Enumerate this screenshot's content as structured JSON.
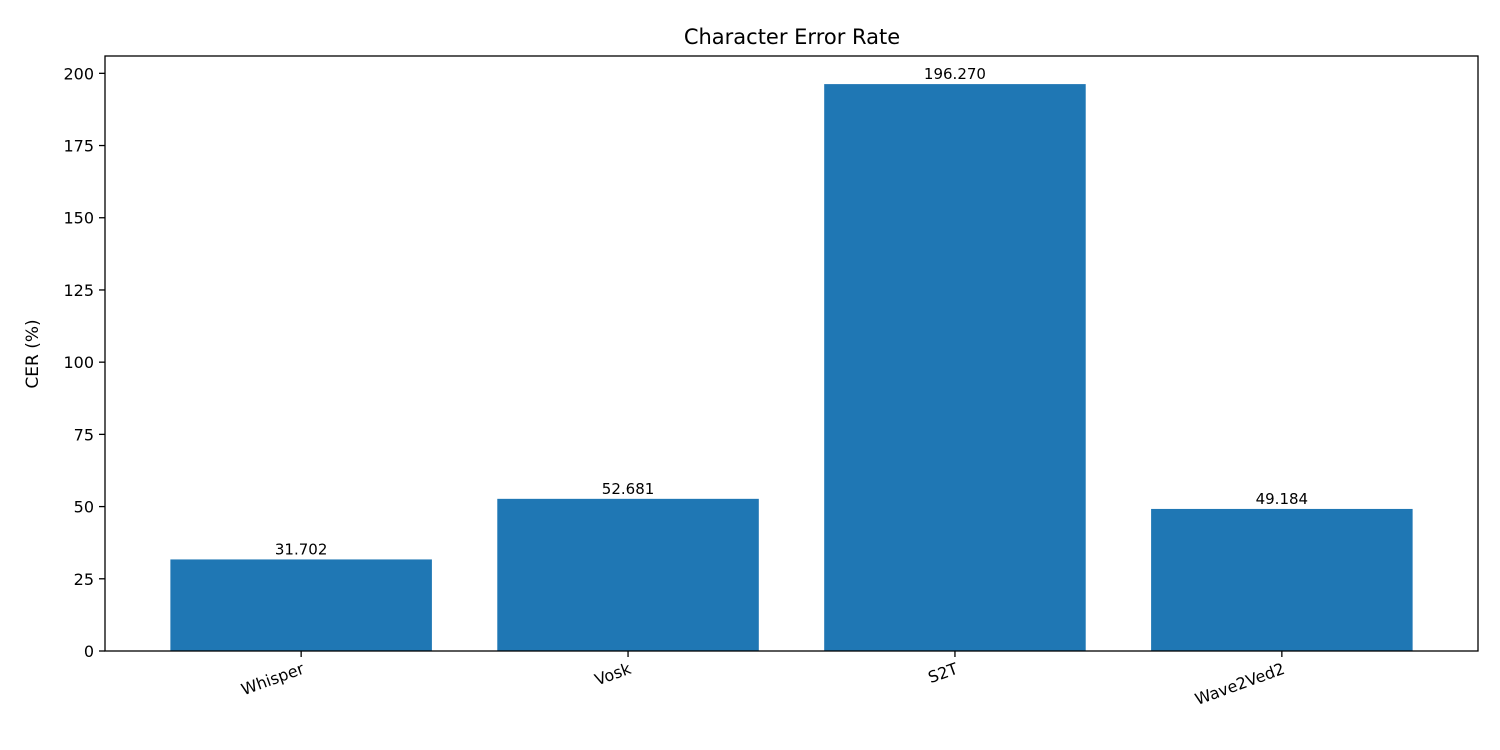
{
  "chart_data": {
    "type": "bar",
    "title": "Character Error Rate",
    "xlabel": "",
    "ylabel": "CER (%)",
    "categories": [
      "Whisper",
      "Vosk",
      "S2T",
      "Wave2Ved2"
    ],
    "values": [
      31.702,
      52.681,
      196.27,
      49.184
    ],
    "value_labels": [
      "31.702",
      "52.681",
      "196.270",
      "49.184"
    ],
    "ylim": [
      0,
      206
    ],
    "yticks": [
      0,
      25,
      50,
      75,
      100,
      125,
      150,
      175,
      200
    ],
    "grid": false,
    "bar_color": "#1f77b4",
    "x_tick_rotation_deg": 20
  }
}
